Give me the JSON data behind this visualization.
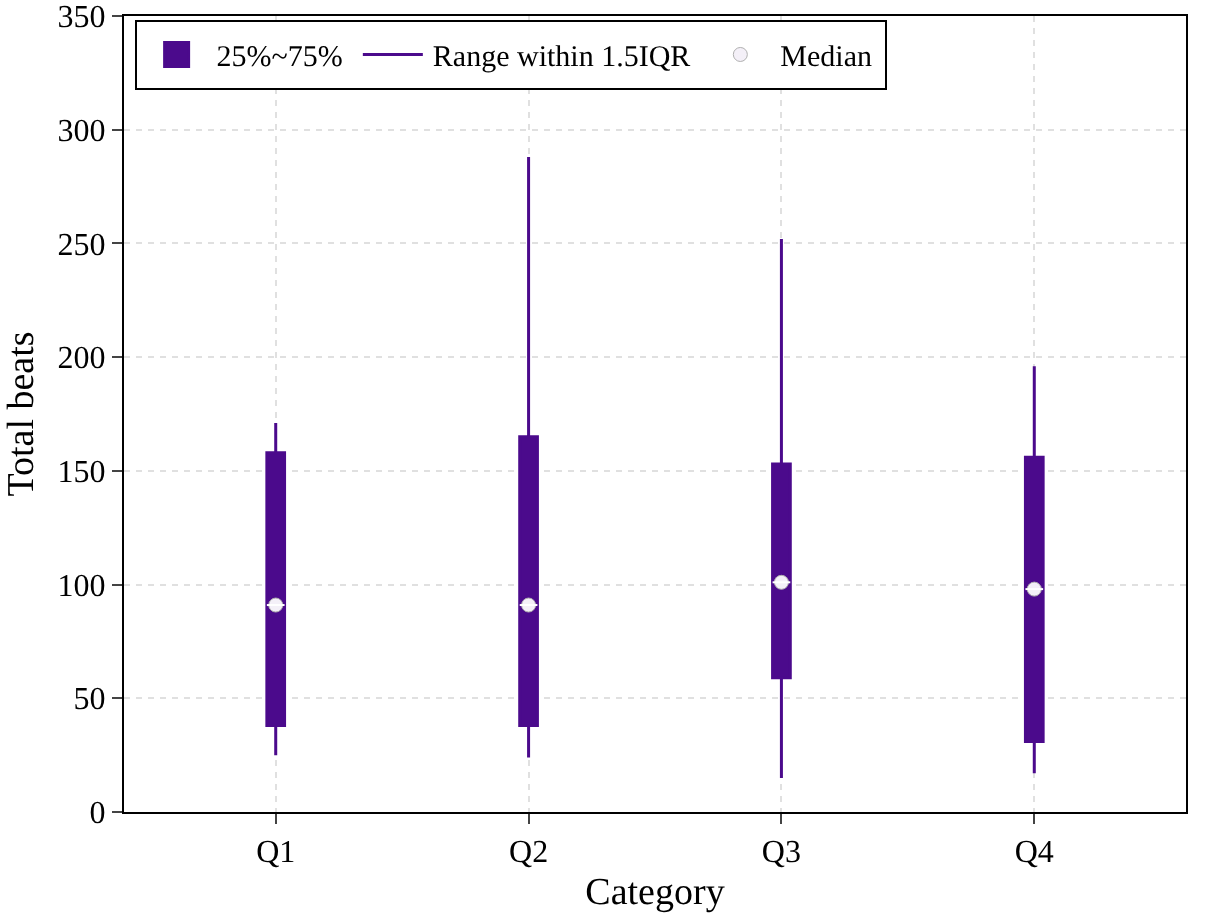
{
  "chart_data": {
    "type": "box",
    "xlabel": "Category",
    "ylabel": "Total beats",
    "categories": [
      "Q1",
      "Q2",
      "Q3",
      "Q4"
    ],
    "ylim": [
      0,
      350
    ],
    "yticks": [
      0,
      50,
      100,
      150,
      200,
      250,
      300,
      350
    ],
    "grid": true,
    "legend": "top",
    "series": [
      {
        "name": "25%~75%",
        "type": "box",
        "color": "#4b0a8c",
        "boxes": [
          {
            "low": 25,
            "q1": 38,
            "median": 91,
            "q3": 158,
            "high": 171
          },
          {
            "low": 24,
            "q1": 38,
            "median": 91,
            "q3": 165,
            "high": 288
          },
          {
            "low": 15,
            "q1": 59,
            "median": 101,
            "q3": 153,
            "high": 252
          },
          {
            "low": 17,
            "q1": 31,
            "median": 98,
            "q3": 156,
            "high": 196
          }
        ]
      },
      {
        "name": "Range within 1.5IQR",
        "type": "line",
        "color": "#4b0a8c",
        "values": [
          null,
          null,
          null,
          null
        ]
      },
      {
        "name": "Median",
        "type": "scatter",
        "color": "#f4f0f8",
        "marker": "circle",
        "x": [
          "Q1",
          "Q2",
          "Q3",
          "Q4"
        ],
        "values": [
          91,
          91,
          101,
          98
        ]
      }
    ]
  }
}
